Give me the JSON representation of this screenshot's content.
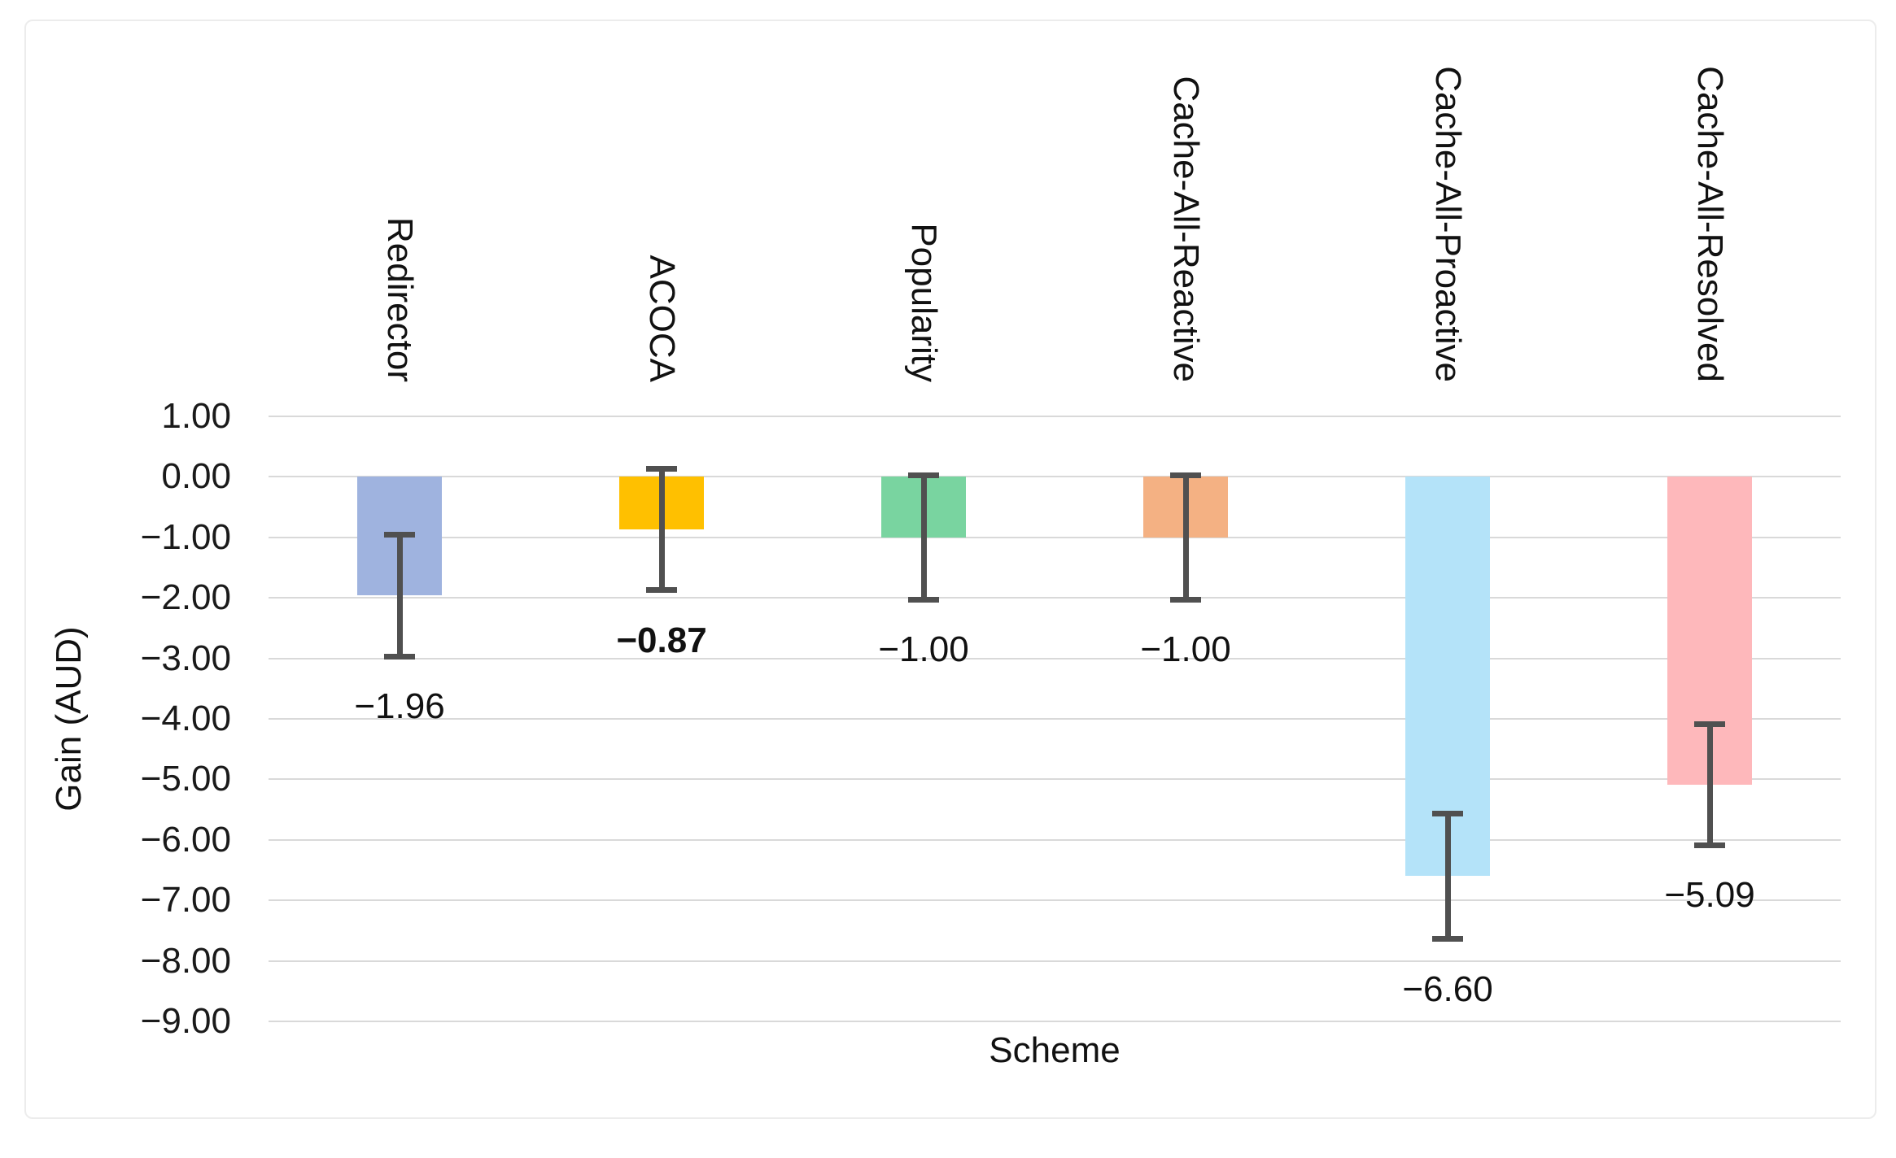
{
  "chart_data": {
    "type": "bar",
    "title": "",
    "xlabel": "Scheme",
    "ylabel": "Gain (AUD)",
    "categories": [
      "Redirector",
      "ACOCA",
      "Popularity",
      "Cache-All-Reactive",
      "Cache-All-Proactive",
      "Cache-All-Resolved"
    ],
    "values": [
      -1.96,
      -0.87,
      -1.0,
      -1.0,
      -6.6,
      -5.09
    ],
    "data_labels": [
      "−1.96",
      "−0.87",
      "−1.00",
      "−1.00",
      "−6.60",
      "−5.09"
    ],
    "bold_label_index": 1,
    "bar_colors": [
      "#9fb3df",
      "#ffc000",
      "#79d4a0",
      "#f4b183",
      "#b4e3f9",
      "#feb8bb"
    ],
    "error_high": [
      -0.95,
      0.13,
      0.03,
      0.03,
      -5.56,
      -4.09
    ],
    "error_low": [
      -2.97,
      -1.87,
      -2.03,
      -2.03,
      -7.64,
      -6.09
    ],
    "error_bar_color": "#505050",
    "y_ticks": [
      {
        "label": "1.00",
        "value": 1
      },
      {
        "label": "0.00",
        "value": 0
      },
      {
        "label": "−1.00",
        "value": -1
      },
      {
        "label": "−2.00",
        "value": -2
      },
      {
        "label": "−3.00",
        "value": -3
      },
      {
        "label": "−4.00",
        "value": -4
      },
      {
        "label": "−5.00",
        "value": -5
      },
      {
        "label": "−6.00",
        "value": -6
      },
      {
        "label": "−7.00",
        "value": -7
      },
      {
        "label": "−8.00",
        "value": -8
      },
      {
        "label": "−9.00",
        "value": -9
      }
    ],
    "ylim": [
      1,
      -9
    ],
    "grid": true,
    "gridline_color": "#d9d9d9",
    "legend": "none",
    "background_color": "#ffffff"
  }
}
